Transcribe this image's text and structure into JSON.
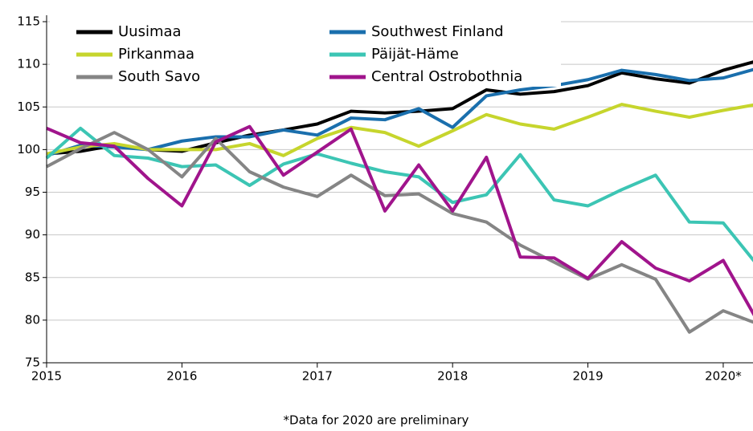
{
  "chart_data": {
    "type": "line",
    "annotation": "*Data for 2020 are preliminary",
    "x": [
      2015,
      2015.25,
      2015.5,
      2015.75,
      2016,
      2016.25,
      2016.5,
      2016.75,
      2017,
      2017.25,
      2017.5,
      2017.75,
      2018,
      2018.25,
      2018.5,
      2018.75,
      2019,
      2019.25,
      2019.5,
      2019.75,
      2020,
      2020.25
    ],
    "series": [
      {
        "name": "Uusimaa",
        "color": "#000000",
        "values": [
          99.5,
          99.8,
          100.5,
          100,
          99.8,
          100.8,
          101.7,
          102.3,
          103,
          104.5,
          104.3,
          104.5,
          104.8,
          107,
          106.5,
          106.8,
          107.5,
          109,
          108.3,
          107.8,
          109.3,
          110.4
        ]
      },
      {
        "name": "Southwest Finland",
        "color": "#1a6fad",
        "values": [
          99.3,
          100.5,
          100.3,
          100,
          101,
          101.5,
          101.5,
          102.3,
          101.7,
          103.7,
          103.5,
          104.8,
          102.6,
          106.3,
          107,
          107.5,
          108.2,
          109.3,
          108.8,
          108.1,
          108.4,
          109.5
        ]
      },
      {
        "name": "Pirkanmaa",
        "color": "#c6d52d",
        "values": [
          99.5,
          100.3,
          100.7,
          100,
          100,
          100,
          100.7,
          99.3,
          101.3,
          102.6,
          102,
          100.4,
          102.2,
          104.1,
          103,
          102.4,
          103.8,
          105.3,
          104.5,
          103.8,
          104.6,
          105.3
        ]
      },
      {
        "name": "Päijät-Häme",
        "color": "#3cc5b4",
        "values": [
          99,
          102.5,
          99.3,
          99,
          98,
          98.2,
          95.8,
          98.3,
          99.5,
          98.4,
          97.4,
          96.8,
          93.8,
          94.7,
          99.4,
          94.1,
          93.4,
          95.3,
          97,
          91.5,
          91.4,
          86.5
        ]
      },
      {
        "name": "South Savo",
        "color": "#858585",
        "values": [
          98,
          100.1,
          102,
          100,
          96.8,
          101.3,
          97.4,
          95.6,
          94.5,
          97,
          94.6,
          94.8,
          92.5,
          91.5,
          88.8,
          86.8,
          84.8,
          86.5,
          84.8,
          78.6,
          81.1,
          79.6
        ]
      },
      {
        "name": "Central Ostrobothnia",
        "color": "#a0148c",
        "values": [
          102.5,
          100.8,
          100.4,
          96.6,
          93.4,
          100.9,
          102.7,
          97,
          99.7,
          102.4,
          92.8,
          98.2,
          92.8,
          99.1,
          87.4,
          87.3,
          84.9,
          89.2,
          86.1,
          84.6,
          87,
          80
        ]
      }
    ],
    "xlim": [
      2015,
      2020.22
    ],
    "xticks": [
      2015,
      2016,
      2017,
      2018,
      2019,
      {
        "value": 2020,
        "label": "2020*"
      }
    ],
    "ylim": [
      75,
      115
    ],
    "yticks": [
      75,
      80,
      85,
      90,
      95,
      100,
      105,
      110,
      115
    ],
    "grid": true
  }
}
